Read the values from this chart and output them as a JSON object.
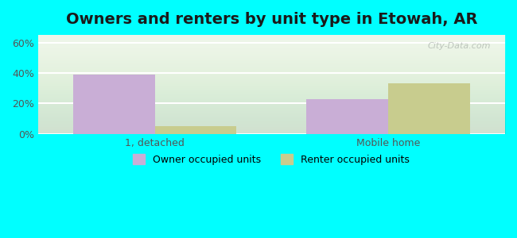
{
  "title": "Owners and renters by unit type in Etowah, AR",
  "categories": [
    "1, detached",
    "Mobile home"
  ],
  "owner_values": [
    39,
    23
  ],
  "renter_values": [
    5,
    33
  ],
  "owner_color": "#c9aed6",
  "renter_color": "#c8cc8e",
  "owner_label": "Owner occupied units",
  "renter_label": "Renter occupied units",
  "yticks": [
    0,
    20,
    40,
    60
  ],
  "ylim": [
    0,
    65
  ],
  "background_outer": "#00ffff",
  "bar_width": 0.35,
  "title_fontsize": 14,
  "watermark": "City-Data.com"
}
